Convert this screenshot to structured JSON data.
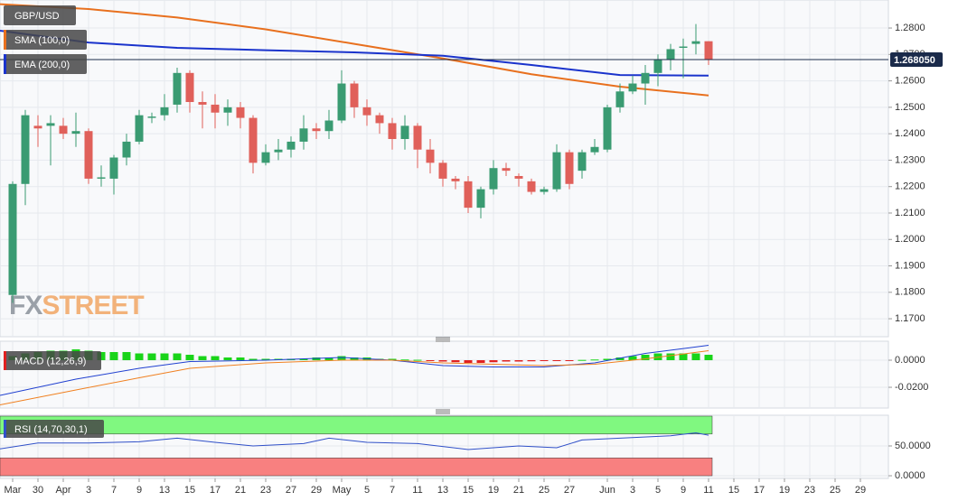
{
  "chart_data": [
    {
      "type": "candlestick",
      "symbol": "GBP/USD",
      "categories": [
        "Mar",
        null,
        "30",
        null,
        "Apr",
        null,
        "3",
        null,
        "7",
        null,
        "9",
        null,
        "13",
        null,
        "15",
        null,
        "17",
        null,
        "21",
        null,
        "23",
        null,
        "27",
        null,
        "29",
        null,
        "May",
        null,
        "5",
        null,
        "7",
        null,
        "11",
        null,
        "13",
        null,
        "15",
        null,
        "19",
        null,
        "21",
        null,
        "25",
        null,
        "27",
        null,
        null,
        "Jun",
        null,
        "3",
        null,
        "5",
        null,
        "9",
        null,
        "11",
        null,
        "15",
        null,
        "17",
        null,
        "19",
        null,
        "23",
        null,
        "25",
        null,
        "29",
        null,
        null
      ],
      "open": [
        1.179,
        1.221,
        1.243,
        1.243,
        1.243,
        1.24,
        1.241,
        1.223,
        1.223,
        1.231,
        1.237,
        1.246,
        1.247,
        1.251,
        1.263,
        1.252,
        1.251,
        1.248,
        1.25,
        1.246,
        1.229,
        1.233,
        1.234,
        1.237,
        1.242,
        1.241,
        1.245,
        1.259,
        1.25,
        1.247,
        1.244,
        1.238,
        1.243,
        1.234,
        1.229,
        1.223,
        1.222,
        1.212,
        1.219,
        1.227,
        1.224,
        1.222,
        1.218,
        1.219,
        1.233,
        1.226,
        1.233,
        1.234,
        1.25,
        1.256,
        1.259,
        1.263,
        1.268,
        1.2725,
        1.274,
        1.275,
        null,
        null,
        null,
        null,
        null,
        null,
        null,
        null,
        null,
        null,
        null,
        null,
        null,
        null
      ],
      "high": [
        1.222,
        1.249,
        1.247,
        1.247,
        1.246,
        1.248,
        1.242,
        1.228,
        1.232,
        1.24,
        1.249,
        1.248,
        1.255,
        1.265,
        1.264,
        1.256,
        1.255,
        1.253,
        1.252,
        1.247,
        1.236,
        1.238,
        1.239,
        1.247,
        1.244,
        1.249,
        1.264,
        1.26,
        1.253,
        1.248,
        1.246,
        1.247,
        1.244,
        1.238,
        1.23,
        1.224,
        1.224,
        1.22,
        1.23,
        1.229,
        1.225,
        1.223,
        1.22,
        1.236,
        1.234,
        1.234,
        1.238,
        1.251,
        1.259,
        1.262,
        1.266,
        1.27,
        1.274,
        1.276,
        1.2815,
        1.275,
        null,
        null,
        null,
        null,
        null,
        null,
        null,
        null,
        null,
        null,
        null,
        null,
        null,
        null
      ],
      "low": [
        1.176,
        1.213,
        1.235,
        1.228,
        1.238,
        1.235,
        1.221,
        1.22,
        1.217,
        1.228,
        1.236,
        1.244,
        1.245,
        1.248,
        1.248,
        1.242,
        1.242,
        1.243,
        1.242,
        1.225,
        1.228,
        1.23,
        1.231,
        1.234,
        1.238,
        1.238,
        1.244,
        1.246,
        1.243,
        1.24,
        1.234,
        1.234,
        1.227,
        1.225,
        1.22,
        1.219,
        1.21,
        1.208,
        1.217,
        1.224,
        1.22,
        1.217,
        1.217,
        1.218,
        1.219,
        1.223,
        1.232,
        1.233,
        1.248,
        1.255,
        1.251,
        1.258,
        1.264,
        1.261,
        1.27,
        1.266,
        null,
        null,
        null,
        null,
        null,
        null,
        null,
        null,
        null,
        null,
        null,
        null,
        null,
        null
      ],
      "close": [
        1.221,
        1.247,
        1.242,
        1.244,
        1.24,
        1.241,
        1.223,
        1.2235,
        1.231,
        1.237,
        1.247,
        1.2465,
        1.25,
        1.263,
        1.252,
        1.251,
        1.248,
        1.25,
        1.246,
        1.229,
        1.233,
        1.234,
        1.237,
        1.242,
        1.241,
        1.245,
        1.259,
        1.25,
        1.247,
        1.244,
        1.238,
        1.243,
        1.234,
        1.229,
        1.223,
        1.222,
        1.212,
        1.219,
        1.227,
        1.226,
        1.223,
        1.218,
        1.219,
        1.233,
        1.221,
        1.233,
        1.235,
        1.25,
        1.256,
        1.259,
        1.263,
        1.268,
        1.272,
        1.273,
        1.275,
        1.268,
        null,
        null,
        null,
        null,
        null,
        null,
        null,
        null,
        null,
        null,
        null,
        null,
        null,
        null
      ],
      "up_color": "#3a9b72",
      "down_color": "#e0605a",
      "series": [
        {
          "name": "SMA (100,0)",
          "color": "#e8701e",
          "x": [
            -1,
            6,
            13,
            20,
            27,
            34,
            41,
            48,
            55
          ],
          "values": [
            1.289,
            1.2872,
            1.284,
            1.2795,
            1.274,
            1.2685,
            1.2625,
            1.2578,
            1.2545
          ]
        },
        {
          "name": "EMA (200,0)",
          "color": "#1a33cc",
          "x": [
            -1,
            6,
            13,
            20,
            27,
            34,
            41,
            48,
            55
          ],
          "values": [
            1.279,
            1.2745,
            1.2725,
            1.2716,
            1.2708,
            1.2695,
            1.266,
            1.2622,
            1.262
          ]
        }
      ],
      "last_price": {
        "value": 1.26805,
        "label": "1.268050"
      },
      "watermark": [
        "FX",
        "STREET"
      ],
      "ylim": [
        1.1632,
        1.2906
      ],
      "yticks": [
        {
          "value": 1.17,
          "label": "1.1700"
        },
        {
          "value": 1.18,
          "label": "1.1800"
        },
        {
          "value": 1.19,
          "label": "1.1900"
        },
        {
          "value": 1.2,
          "label": "1.2000"
        },
        {
          "value": 1.21,
          "label": "1.2100"
        },
        {
          "value": 1.22,
          "label": "1.2200"
        },
        {
          "value": 1.23,
          "label": "1.2300"
        },
        {
          "value": 1.24,
          "label": "1.2400"
        },
        {
          "value": 1.25,
          "label": "1.2500"
        },
        {
          "value": 1.26,
          "label": "1.2600"
        },
        {
          "value": 1.27,
          "label": "1.2700"
        },
        {
          "value": 1.28,
          "label": "1.2800"
        }
      ],
      "grid": true
    },
    {
      "type": "macd",
      "name": "MACD (12,26,9)",
      "histogram": {
        "up_color": "#19d419",
        "down_color": "#e02020",
        "values": [
          0.003,
          0.005,
          0.006,
          0.007,
          0.007,
          0.008,
          0.007,
          0.006,
          0.006,
          0.006,
          0.005,
          0.005,
          0.005,
          0.005,
          0.004,
          0.003,
          0.003,
          0.002,
          0.002,
          0.001,
          0.001,
          0.001,
          0.001,
          0.001,
          0.002,
          0.002,
          0.003,
          0.002,
          0.002,
          0.001,
          0.001,
          0.0005,
          0.0003,
          -0.0005,
          -0.001,
          -0.0015,
          -0.002,
          -0.002,
          -0.0015,
          -0.001,
          -0.001,
          -0.0008,
          -0.0005,
          -0.0003,
          -0.0002,
          0.0002,
          0.0005,
          0.001,
          0.002,
          0.003,
          0.004,
          0.005,
          0.005,
          0.005,
          0.005,
          0.004
        ]
      },
      "series": [
        {
          "color": "#2040d0",
          "x": [
            -1,
            5,
            10,
            14,
            20,
            26,
            30,
            34,
            38,
            42,
            46,
            50,
            55
          ],
          "values": [
            -0.026,
            -0.014,
            -0.006,
            -0.001,
            0.0,
            0.002,
            0.0,
            -0.004,
            -0.005,
            -0.005,
            -0.002,
            0.005,
            0.011
          ]
        },
        {
          "color": "#f08020",
          "x": [
            -1,
            5,
            10,
            14,
            20,
            26,
            30,
            34,
            38,
            42,
            46,
            50,
            55
          ],
          "values": [
            -0.033,
            -0.022,
            -0.013,
            -0.006,
            -0.002,
            0.0,
            0.0,
            -0.002,
            -0.003,
            -0.004,
            -0.003,
            0.001,
            0.007
          ]
        }
      ],
      "ylim": [
        -0.0353,
        0.014
      ],
      "yticks": [
        {
          "value": -0.02,
          "label": "-0.0200"
        },
        {
          "value": 0,
          "label": "0.0000"
        }
      ],
      "grid": true
    },
    {
      "type": "rsi",
      "name": "RSI (14,70,30,1)",
      "bands": [
        {
          "from": 70,
          "to": 100,
          "color": "#80f880"
        },
        {
          "from": 0,
          "to": 30,
          "color": "#f88080"
        }
      ],
      "series": [
        {
          "color": "#3050c8",
          "x": [
            -1,
            2,
            6,
            10,
            13,
            16,
            19,
            23,
            25,
            28,
            32,
            36,
            40,
            43,
            45,
            48,
            52,
            54,
            55
          ],
          "values": [
            45,
            55,
            55,
            57,
            63,
            56,
            50,
            54,
            63,
            56,
            54,
            44,
            50,
            47,
            60,
            63,
            67,
            72,
            68
          ]
        }
      ],
      "ylim": [
        -4.5,
        101.5
      ],
      "yticks": [
        {
          "value": 0,
          "label": "0.0000"
        },
        {
          "value": 50,
          "label": "50.0000"
        }
      ],
      "grid": true
    }
  ]
}
